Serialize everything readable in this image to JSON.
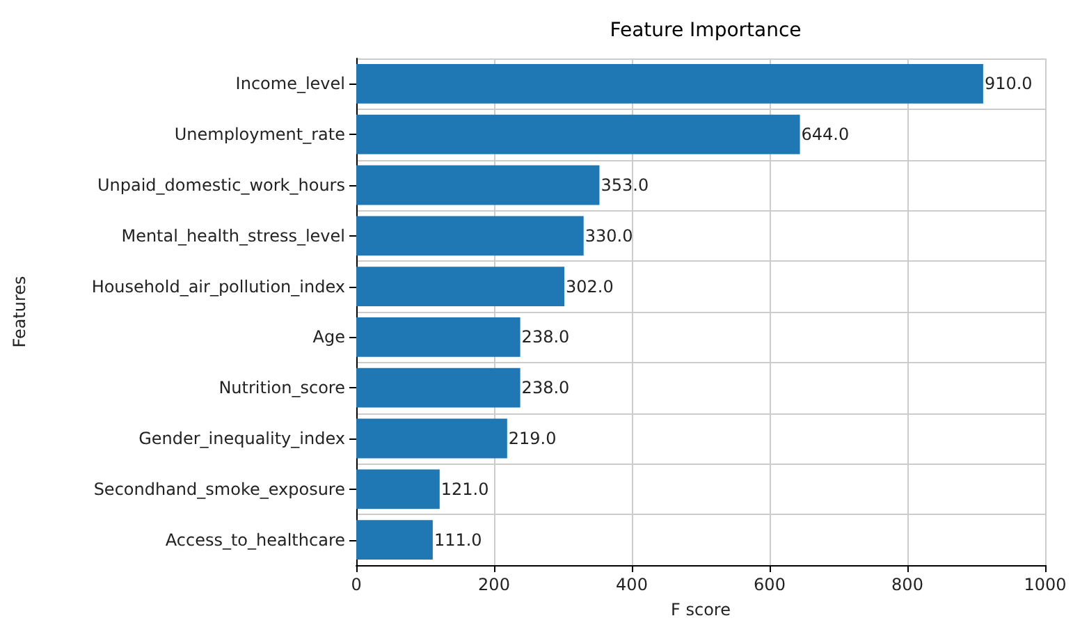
{
  "chart_data": {
    "type": "bar",
    "orientation": "horizontal",
    "title": "Feature Importance",
    "xlabel": "F score",
    "ylabel": "Features",
    "categories": [
      "Income_level",
      "Unemployment_rate",
      "Unpaid_domestic_work_hours",
      "Mental_health_stress_level",
      "Household_air_pollution_index",
      "Age",
      "Nutrition_score",
      "Gender_inequality_index",
      "Secondhand_smoke_exposure",
      "Access_to_healthcare"
    ],
    "values": [
      910,
      644,
      353,
      330,
      302,
      238,
      238,
      219,
      121,
      111
    ],
    "value_labels": [
      "910.0",
      "644.0",
      "353.0",
      "330.0",
      "302.0",
      "238.0",
      "238.0",
      "219.0",
      "121.0",
      "111.0"
    ],
    "color": "#1f77b4",
    "xlim": [
      0,
      1000
    ],
    "xticks": [
      0,
      200,
      400,
      600,
      800,
      1000
    ],
    "grid": true
  }
}
